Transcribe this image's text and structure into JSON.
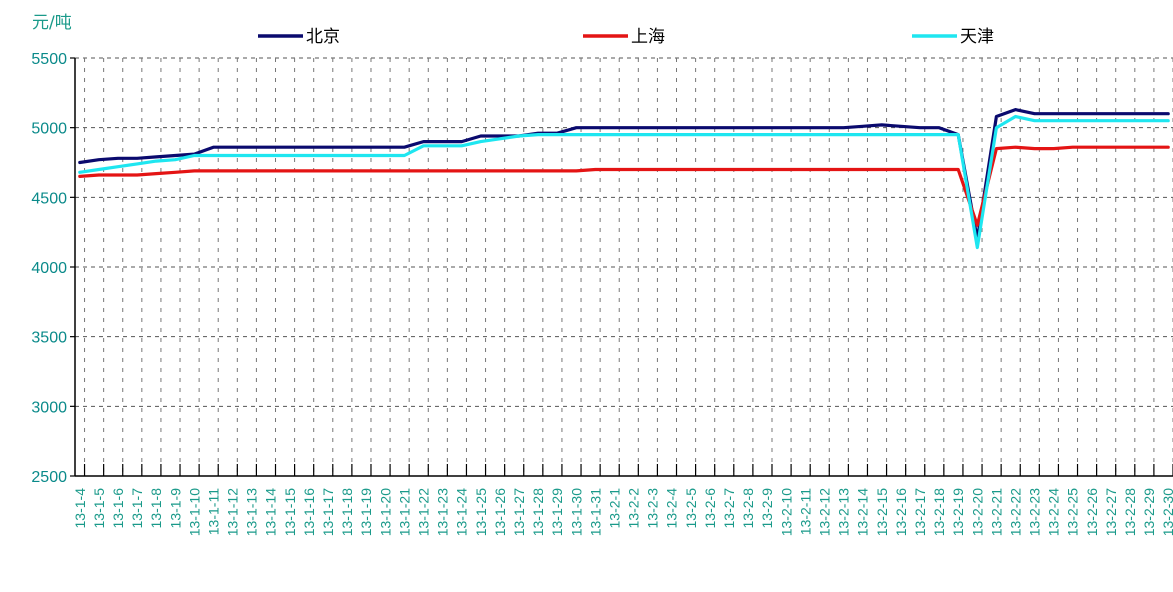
{
  "chart_data": {
    "type": "line",
    "unit_label": "元/吨",
    "ylim": [
      2500,
      5500
    ],
    "yticks": [
      2500,
      3000,
      3500,
      4000,
      4500,
      5000,
      5500
    ],
    "grid": true,
    "legend_position": "top",
    "categories": [
      "13-1-4",
      "13-1-5",
      "13-1-6",
      "13-1-7",
      "13-1-8",
      "13-1-9",
      "13-1-10",
      "13-1-11",
      "13-1-12",
      "13-1-13",
      "13-1-14",
      "13-1-15",
      "13-1-16",
      "13-1-17",
      "13-1-18",
      "13-1-19",
      "13-1-20",
      "13-1-21",
      "13-1-22",
      "13-1-23",
      "13-1-24",
      "13-1-25",
      "13-1-26",
      "13-1-27",
      "13-1-28",
      "13-1-29",
      "13-1-30",
      "13-1-31",
      "13-2-1",
      "13-2-2",
      "13-2-3",
      "13-2-4",
      "13-2-5",
      "13-2-6",
      "13-2-7",
      "13-2-8",
      "13-2-9",
      "13-2-10",
      "13-2-11",
      "13-2-12",
      "13-2-13",
      "13-2-14",
      "13-2-15",
      "13-2-16",
      "13-2-17",
      "13-2-18",
      "13-2-19",
      "13-2-20",
      "13-2-21",
      "13-2-22",
      "13-2-23",
      "13-2-24",
      "13-2-25",
      "13-2-26",
      "13-2-27",
      "13-2-28",
      "13-2-29",
      "13-2-30"
    ],
    "series": [
      {
        "name": "北京",
        "color": "#0a0a6e",
        "values": [
          4750,
          4770,
          4780,
          4780,
          4790,
          4800,
          4810,
          4860,
          4860,
          4860,
          4860,
          4860,
          4860,
          4860,
          4860,
          4860,
          4860,
          4860,
          4900,
          4900,
          4900,
          4940,
          4940,
          4940,
          4960,
          4960,
          5000,
          5000,
          5000,
          5000,
          5000,
          5000,
          5000,
          5000,
          5000,
          5000,
          5000,
          5000,
          5000,
          5000,
          5000,
          5010,
          5020,
          5010,
          5000,
          5000,
          4950,
          4200,
          5080,
          5130,
          5100,
          5100,
          5100,
          5100,
          5100,
          5100,
          5100,
          5100
        ]
      },
      {
        "name": "上海",
        "color": "#e41414",
        "values": [
          4650,
          4660,
          4660,
          4660,
          4670,
          4680,
          4690,
          4690,
          4690,
          4690,
          4690,
          4690,
          4690,
          4690,
          4690,
          4690,
          4690,
          4690,
          4690,
          4690,
          4690,
          4690,
          4690,
          4690,
          4690,
          4690,
          4690,
          4700,
          4700,
          4700,
          4700,
          4700,
          4700,
          4700,
          4700,
          4700,
          4700,
          4700,
          4700,
          4700,
          4700,
          4700,
          4700,
          4700,
          4700,
          4700,
          4700,
          4300,
          4850,
          4860,
          4850,
          4850,
          4860,
          4860,
          4860,
          4860,
          4860,
          4860
        ]
      },
      {
        "name": "天津",
        "color": "#1ee6f0",
        "values": [
          4680,
          4700,
          4720,
          4740,
          4760,
          4770,
          4800,
          4800,
          4800,
          4800,
          4800,
          4800,
          4800,
          4800,
          4800,
          4800,
          4800,
          4800,
          4870,
          4870,
          4870,
          4900,
          4920,
          4940,
          4950,
          4950,
          4950,
          4950,
          4950,
          4950,
          4950,
          4950,
          4950,
          4950,
          4950,
          4950,
          4950,
          4950,
          4950,
          4950,
          4950,
          4950,
          4950,
          4950,
          4950,
          4950,
          4950,
          4140,
          5000,
          5080,
          5050,
          5050,
          5050,
          5050,
          5050,
          5050,
          5050,
          5050
        ]
      }
    ]
  }
}
